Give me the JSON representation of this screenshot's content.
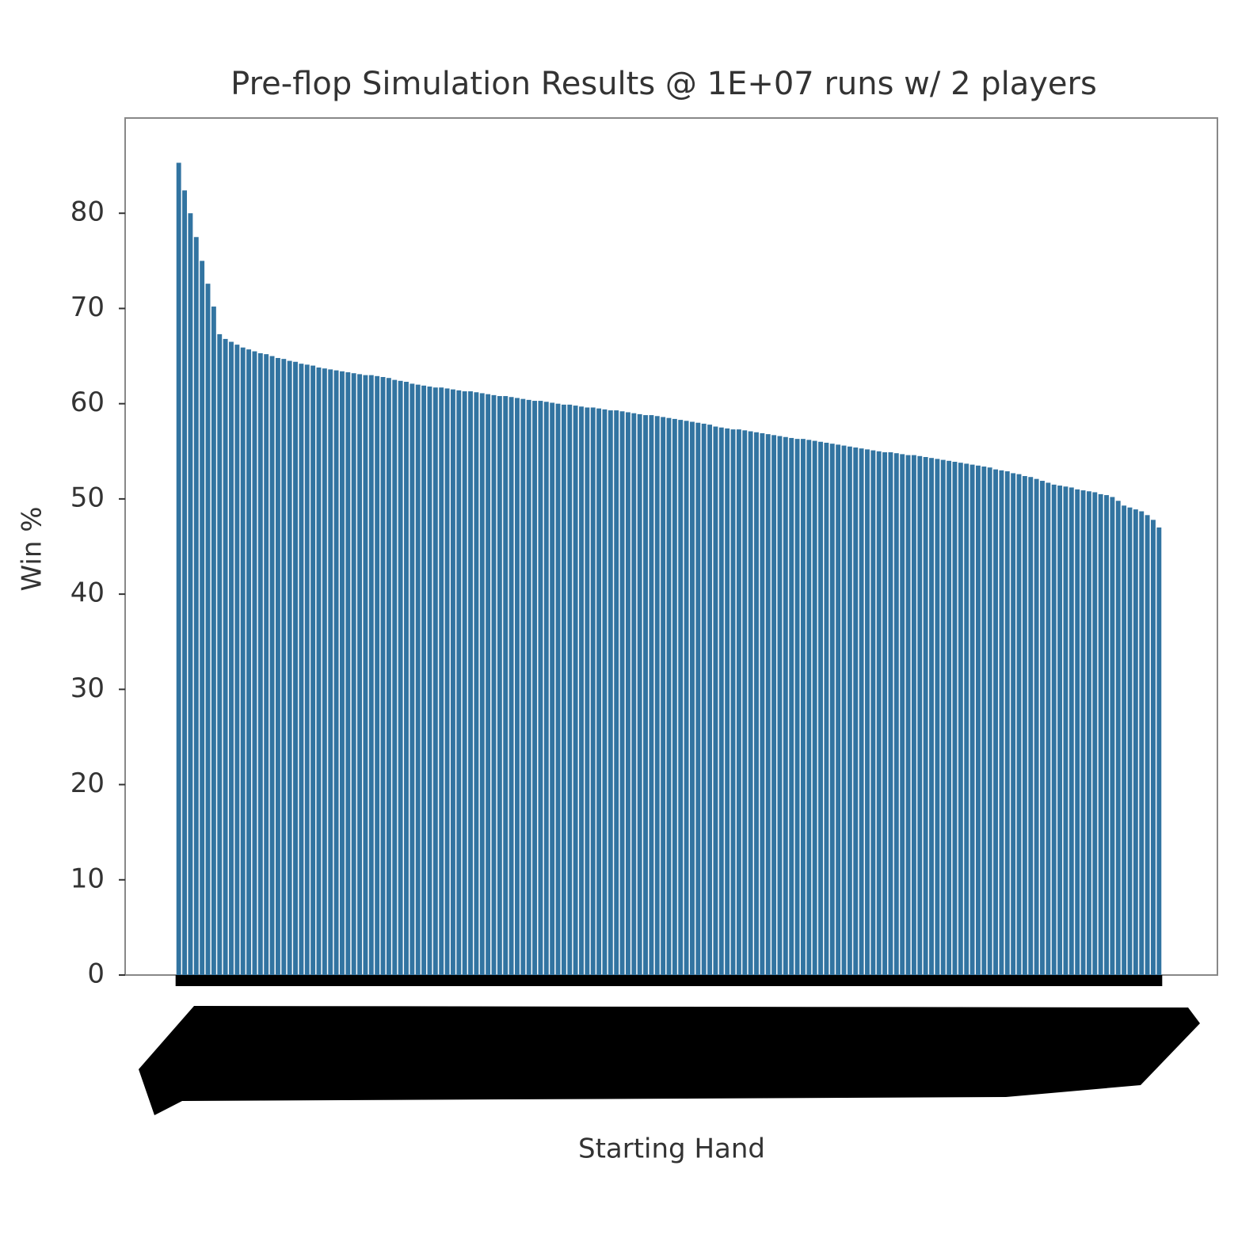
{
  "chart_data": {
    "type": "bar",
    "title": "Pre-flop Simulation Results @ 1E+07 runs w/ 2 players",
    "x_label": "Starting Hand",
    "y_label": "Win %",
    "categories": [
      null,
      null,
      null,
      null,
      null,
      null,
      null,
      null,
      null,
      null,
      null,
      null,
      null,
      null,
      null,
      null,
      null,
      null,
      null,
      null,
      null,
      null,
      null,
      null,
      null,
      null,
      null,
      null,
      null,
      null,
      null,
      null,
      null,
      null,
      null,
      null,
      null,
      null,
      null,
      null,
      null,
      null,
      null,
      null,
      null,
      null,
      null,
      null,
      null,
      null,
      null,
      null,
      null,
      null,
      null,
      null,
      null,
      null,
      null,
      null,
      null,
      null,
      null,
      null,
      null,
      null,
      null,
      null,
      null,
      null,
      null,
      null,
      null,
      null,
      null,
      null,
      null,
      null,
      null,
      null,
      null,
      null,
      null,
      null,
      null,
      null,
      null,
      null,
      null,
      null,
      null,
      null,
      null,
      null,
      null,
      null,
      null,
      null,
      null,
      null,
      null,
      null,
      null,
      null,
      null,
      null,
      null,
      null,
      null,
      null,
      null,
      null,
      null,
      null,
      null,
      null,
      null,
      null,
      null,
      null,
      null,
      null,
      null,
      null,
      null,
      null,
      null,
      null,
      null,
      null,
      null,
      null,
      null,
      null,
      null,
      null,
      null,
      null,
      null,
      null,
      null,
      null,
      null,
      null,
      null,
      null,
      null,
      null,
      null,
      null,
      null,
      null,
      null,
      null,
      null,
      null,
      null,
      null,
      null,
      null,
      null,
      null,
      null,
      null,
      null,
      null,
      null,
      null,
      null
    ],
    "values": [
      85.3,
      82.4,
      80.0,
      77.5,
      75.0,
      72.6,
      70.2,
      67.3,
      66.8,
      66.5,
      66.2,
      65.9,
      65.7,
      65.5,
      65.3,
      65.2,
      65.0,
      64.8,
      64.7,
      64.5,
      64.4,
      64.2,
      64.1,
      64.0,
      63.8,
      63.7,
      63.6,
      63.5,
      63.4,
      63.3,
      63.2,
      63.1,
      63.0,
      63.0,
      62.9,
      62.8,
      62.7,
      62.5,
      62.4,
      62.3,
      62.1,
      62.0,
      61.9,
      61.8,
      61.7,
      61.7,
      61.6,
      61.5,
      61.4,
      61.3,
      61.3,
      61.2,
      61.1,
      61.0,
      60.9,
      60.8,
      60.8,
      60.7,
      60.6,
      60.5,
      60.4,
      60.3,
      60.3,
      60.2,
      60.1,
      60.0,
      59.9,
      59.9,
      59.8,
      59.7,
      59.6,
      59.6,
      59.5,
      59.4,
      59.3,
      59.3,
      59.2,
      59.1,
      59.0,
      58.9,
      58.8,
      58.8,
      58.7,
      58.6,
      58.5,
      58.4,
      58.3,
      58.2,
      58.1,
      58.0,
      57.9,
      57.8,
      57.6,
      57.5,
      57.4,
      57.3,
      57.3,
      57.2,
      57.1,
      57.0,
      56.9,
      56.8,
      56.7,
      56.6,
      56.5,
      56.4,
      56.3,
      56.3,
      56.2,
      56.1,
      56.0,
      55.9,
      55.8,
      55.7,
      55.6,
      55.5,
      55.4,
      55.3,
      55.2,
      55.1,
      55.0,
      54.9,
      54.9,
      54.8,
      54.7,
      54.6,
      54.6,
      54.5,
      54.4,
      54.3,
      54.2,
      54.1,
      54.0,
      53.9,
      53.8,
      53.7,
      53.6,
      53.5,
      53.4,
      53.3,
      53.1,
      53.0,
      52.9,
      52.7,
      52.6,
      52.4,
      52.3,
      52.1,
      51.9,
      51.7,
      51.5,
      51.4,
      51.3,
      51.2,
      51.0,
      50.9,
      50.8,
      50.7,
      50.5,
      50.4,
      50.2,
      49.8,
      49.3,
      49.1,
      48.9,
      48.7,
      48.3,
      47.8,
      47.0
    ],
    "color": "#3274a1",
    "ylim": [
      0,
      90
    ],
    "yticks": [
      0,
      10,
      20,
      30,
      40,
      50,
      60,
      70,
      80
    ],
    "grid": false
  }
}
